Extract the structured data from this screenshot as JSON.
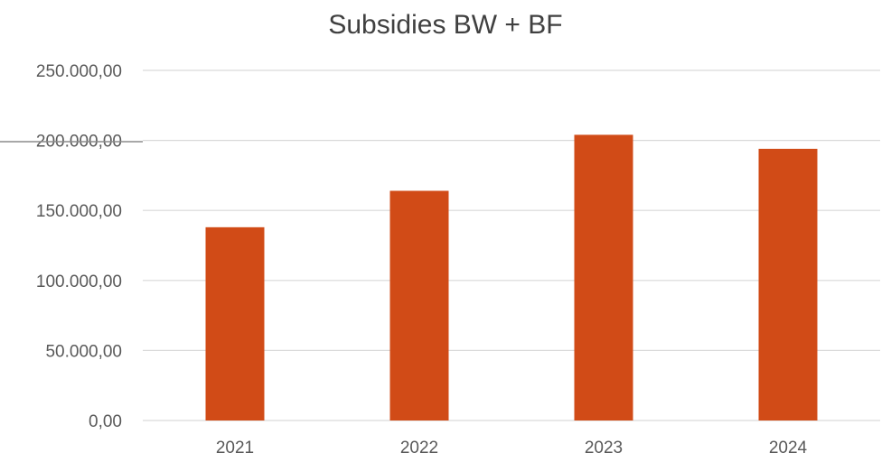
{
  "chart_data": {
    "type": "bar",
    "title": "Subsidies BW + BF",
    "xlabel": "",
    "ylabel": "",
    "categories": [
      "2021",
      "2022",
      "2023",
      "2024"
    ],
    "values": [
      138000,
      164000,
      204000,
      194000
    ],
    "ylim": [
      0,
      250000
    ],
    "yticks": [
      0,
      50000,
      100000,
      150000,
      200000,
      250000
    ],
    "ytick_labels": [
      "0,00",
      "50.000,00",
      "100.000,00",
      "150.000,00",
      "200.000,00",
      "250.000,00"
    ],
    "grid": true,
    "legend": "none",
    "bar_color": "#D14B17",
    "grid_color": "#D9D9D9"
  }
}
